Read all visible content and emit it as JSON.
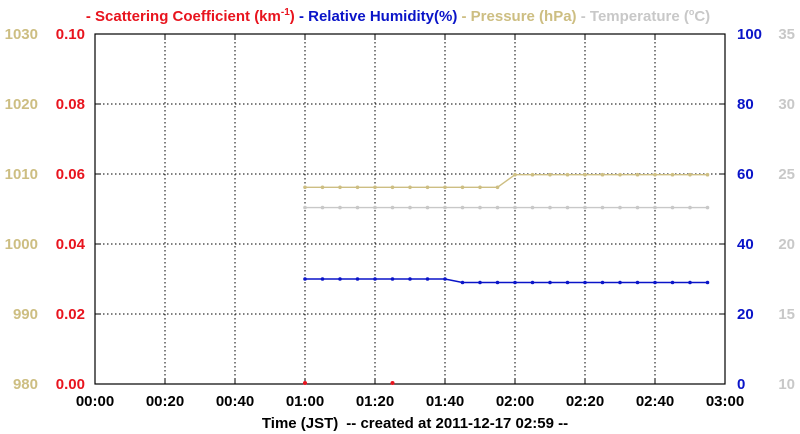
{
  "chart_data": {
    "type": "line",
    "legend": [
      {
        "name": "Scattering Coefficient (km",
        "sup": "-1",
        "tail": ")",
        "color": "#e8141e"
      },
      {
        "name": "Relative Humidity(%)",
        "color": "#0a14c8"
      },
      {
        "name": "Pressure (hPa)",
        "color": "#cdbe82"
      },
      {
        "name": "Temperature (",
        "tail": "C)",
        "color": "#c8c8c8"
      }
    ],
    "xlabel": "Time (JST)",
    "created": "-- created at 2011-12-17 02:59 --",
    "x_ticks": [
      "00:00",
      "00:20",
      "00:40",
      "01:00",
      "01:20",
      "01:40",
      "02:00",
      "02:20",
      "02:40",
      "03:00"
    ],
    "x_range_minutes": [
      0,
      180
    ],
    "axes": {
      "pressure": {
        "ticks": [
          "1030",
          "1020",
          "1010",
          "1000",
          "990",
          "980"
        ],
        "range": [
          980,
          1030
        ],
        "color": "#cdbe82"
      },
      "scattering": {
        "ticks": [
          "0.10",
          "0.08",
          "0.06",
          "0.04",
          "0.02",
          "0.00"
        ],
        "range": [
          0,
          0.1
        ],
        "color": "#e8141e"
      },
      "humidity": {
        "ticks": [
          "100",
          "80",
          "60",
          "40",
          "20",
          "0"
        ],
        "range": [
          0,
          100
        ],
        "color": "#0a14c8"
      },
      "temperature": {
        "ticks": [
          "35",
          "30",
          "25",
          "20",
          "15",
          "10"
        ],
        "range": [
          10,
          35
        ],
        "color": "#c8c8c8"
      }
    },
    "series": [
      {
        "axis": "pressure",
        "color": "#cdbe82",
        "x": [
          60,
          65,
          70,
          75,
          80,
          85,
          90,
          95,
          100,
          105,
          110,
          115,
          120,
          125,
          130,
          135,
          140,
          145,
          150,
          155,
          160,
          165,
          170,
          175
        ],
        "y": [
          1008.1,
          1008.1,
          1008.1,
          1008.1,
          1008.1,
          1008.1,
          1008.1,
          1008.1,
          1008.1,
          1008.1,
          1008.1,
          1008.1,
          1009.9,
          1009.9,
          1009.9,
          1009.9,
          1009.9,
          1009.9,
          1009.9,
          1009.9,
          1009.9,
          1009.9,
          1009.9,
          1009.9
        ]
      },
      {
        "axis": "temperature",
        "color": "#c8c8c8",
        "x": [
          60,
          65,
          70,
          75,
          80,
          85,
          90,
          95,
          100,
          105,
          110,
          115,
          120,
          125,
          130,
          135,
          140,
          145,
          150,
          155,
          160,
          165,
          170,
          175
        ],
        "y": [
          22.6,
          22.6,
          22.6,
          22.6,
          22.6,
          22.6,
          22.6,
          22.6,
          22.6,
          22.6,
          22.6,
          22.6,
          22.6,
          22.6,
          22.6,
          22.6,
          22.6,
          22.6,
          22.6,
          22.6,
          22.6,
          22.6,
          22.6,
          22.6
        ]
      },
      {
        "axis": "humidity",
        "color": "#0a14c8",
        "x": [
          60,
          65,
          70,
          75,
          80,
          85,
          90,
          95,
          100,
          105,
          110,
          115,
          120,
          125,
          130,
          135,
          140,
          145,
          150,
          155,
          160,
          165,
          170,
          175
        ],
        "y": [
          30,
          30,
          30,
          30,
          30,
          30,
          30,
          30,
          30,
          29,
          29,
          29,
          29,
          29,
          29,
          29,
          29,
          29,
          29,
          29,
          29,
          29,
          29,
          29
        ]
      },
      {
        "axis": "scattering",
        "color": "#e8141e",
        "x": [
          60,
          85
        ],
        "y": [
          0.0,
          0.0
        ]
      }
    ]
  }
}
